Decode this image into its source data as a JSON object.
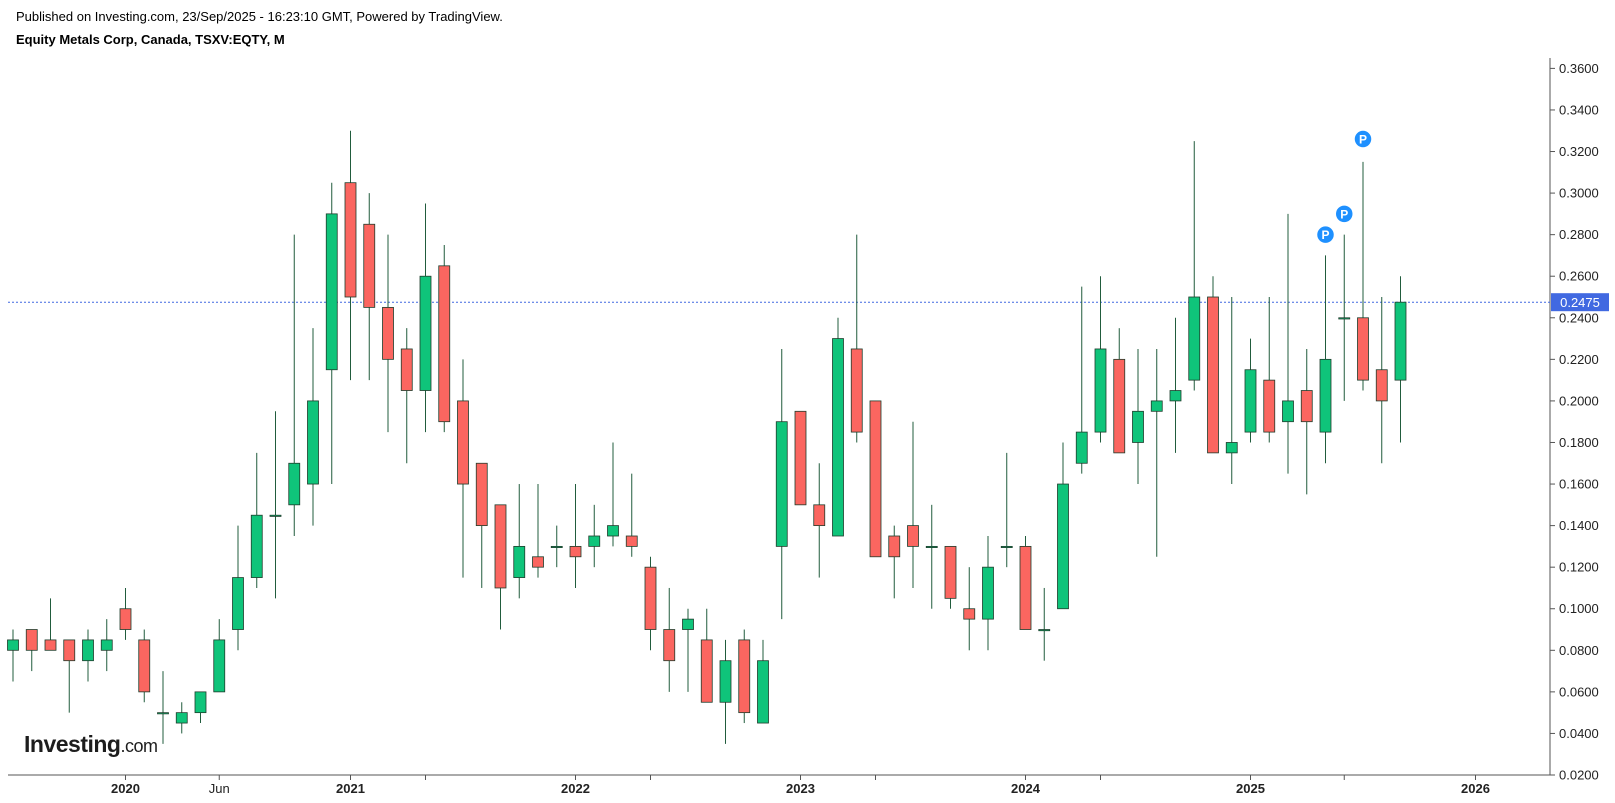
{
  "header": {
    "published": "Published on Investing.com, 23/Sep/2025 - 16:23:10 GMT, Powered by TradingView.",
    "title": "Equity Metals Corp, Canada, TSXV:EQTY, M"
  },
  "logo": {
    "brand": "Investing",
    "domain": ".com"
  },
  "colors": {
    "up": "#0fc47a",
    "down": "#fb6660",
    "wick": "#215c3d",
    "last_price": "#4169e1",
    "marker": "#1e90ff",
    "axis": "#555555"
  },
  "chart_data": {
    "type": "candlestick",
    "title": "Equity Metals Corp, Canada, TSXV:EQTY, M",
    "interval": "monthly",
    "ylim": [
      0.02,
      0.365
    ],
    "y_ticks": [
      "0.0200",
      "0.0400",
      "0.0600",
      "0.0800",
      "0.1000",
      "0.1200",
      "0.1400",
      "0.1600",
      "0.1800",
      "0.2000",
      "0.2200",
      "0.2400",
      "0.2600",
      "0.2800",
      "0.3000",
      "0.3200",
      "0.3400",
      "0.3600"
    ],
    "x_ticks": [
      {
        "label": "2020",
        "date": "2020-01",
        "bold": true
      },
      {
        "label": "Jun",
        "date": "2020-06",
        "bold": false
      },
      {
        "label": "2021",
        "date": "2021-01",
        "bold": true
      },
      {
        "label": "",
        "date": "2021-05",
        "bold": false
      },
      {
        "label": "2022",
        "date": "2022-01",
        "bold": true
      },
      {
        "label": "",
        "date": "2022-05",
        "bold": false
      },
      {
        "label": "2023",
        "date": "2023-01",
        "bold": true
      },
      {
        "label": "",
        "date": "2023-05",
        "bold": false
      },
      {
        "label": "2024",
        "date": "2024-01",
        "bold": true
      },
      {
        "label": "",
        "date": "2024-05",
        "bold": false
      },
      {
        "label": "2025",
        "date": "2025-01",
        "bold": true
      },
      {
        "label": "",
        "date": "2025-06",
        "bold": false
      },
      {
        "label": "2026",
        "date": "2026-01",
        "bold": true
      }
    ],
    "last_price": "0.2475",
    "grid": false,
    "candles": [
      {
        "date": "2019-07",
        "o": 0.08,
        "h": 0.09,
        "l": 0.065,
        "c": 0.085
      },
      {
        "date": "2019-08",
        "o": 0.09,
        "h": 0.09,
        "l": 0.07,
        "c": 0.08
      },
      {
        "date": "2019-09",
        "o": 0.085,
        "h": 0.105,
        "l": 0.08,
        "c": 0.08
      },
      {
        "date": "2019-10",
        "o": 0.085,
        "h": 0.085,
        "l": 0.05,
        "c": 0.075
      },
      {
        "date": "2019-11",
        "o": 0.075,
        "h": 0.09,
        "l": 0.065,
        "c": 0.085
      },
      {
        "date": "2019-12",
        "o": 0.08,
        "h": 0.095,
        "l": 0.07,
        "c": 0.085
      },
      {
        "date": "2020-01",
        "o": 0.1,
        "h": 0.11,
        "l": 0.085,
        "c": 0.09
      },
      {
        "date": "2020-02",
        "o": 0.085,
        "h": 0.09,
        "l": 0.055,
        "c": 0.06
      },
      {
        "date": "2020-03",
        "o": 0.05,
        "h": 0.07,
        "l": 0.035,
        "c": 0.05
      },
      {
        "date": "2020-04",
        "o": 0.045,
        "h": 0.055,
        "l": 0.04,
        "c": 0.05
      },
      {
        "date": "2020-05",
        "o": 0.05,
        "h": 0.06,
        "l": 0.045,
        "c": 0.06
      },
      {
        "date": "2020-06",
        "o": 0.06,
        "h": 0.095,
        "l": 0.06,
        "c": 0.085
      },
      {
        "date": "2020-07",
        "o": 0.09,
        "h": 0.14,
        "l": 0.08,
        "c": 0.115
      },
      {
        "date": "2020-08",
        "o": 0.115,
        "h": 0.175,
        "l": 0.11,
        "c": 0.145
      },
      {
        "date": "2020-09",
        "o": 0.145,
        "h": 0.195,
        "l": 0.105,
        "c": 0.145
      },
      {
        "date": "2020-10",
        "o": 0.15,
        "h": 0.28,
        "l": 0.135,
        "c": 0.17
      },
      {
        "date": "2020-11",
        "o": 0.16,
        "h": 0.235,
        "l": 0.14,
        "c": 0.2
      },
      {
        "date": "2020-12",
        "o": 0.215,
        "h": 0.305,
        "l": 0.16,
        "c": 0.29
      },
      {
        "date": "2021-01",
        "o": 0.305,
        "h": 0.33,
        "l": 0.21,
        "c": 0.25
      },
      {
        "date": "2021-02",
        "o": 0.285,
        "h": 0.3,
        "l": 0.21,
        "c": 0.245
      },
      {
        "date": "2021-03",
        "o": 0.245,
        "h": 0.28,
        "l": 0.185,
        "c": 0.22
      },
      {
        "date": "2021-04",
        "o": 0.225,
        "h": 0.235,
        "l": 0.17,
        "c": 0.205
      },
      {
        "date": "2021-05",
        "o": 0.205,
        "h": 0.295,
        "l": 0.185,
        "c": 0.26
      },
      {
        "date": "2021-06",
        "o": 0.265,
        "h": 0.275,
        "l": 0.185,
        "c": 0.19
      },
      {
        "date": "2021-07",
        "o": 0.2,
        "h": 0.22,
        "l": 0.115,
        "c": 0.16
      },
      {
        "date": "2021-08",
        "o": 0.17,
        "h": 0.17,
        "l": 0.11,
        "c": 0.14
      },
      {
        "date": "2021-09",
        "o": 0.15,
        "h": 0.15,
        "l": 0.09,
        "c": 0.11
      },
      {
        "date": "2021-10",
        "o": 0.115,
        "h": 0.16,
        "l": 0.105,
        "c": 0.13
      },
      {
        "date": "2021-11",
        "o": 0.125,
        "h": 0.16,
        "l": 0.115,
        "c": 0.12
      },
      {
        "date": "2021-12",
        "o": 0.13,
        "h": 0.14,
        "l": 0.12,
        "c": 0.13
      },
      {
        "date": "2022-01",
        "o": 0.13,
        "h": 0.16,
        "l": 0.11,
        "c": 0.125
      },
      {
        "date": "2022-02",
        "o": 0.13,
        "h": 0.15,
        "l": 0.12,
        "c": 0.135
      },
      {
        "date": "2022-03",
        "o": 0.135,
        "h": 0.18,
        "l": 0.13,
        "c": 0.14
      },
      {
        "date": "2022-04",
        "o": 0.135,
        "h": 0.165,
        "l": 0.125,
        "c": 0.13
      },
      {
        "date": "2022-05",
        "o": 0.12,
        "h": 0.125,
        "l": 0.08,
        "c": 0.09
      },
      {
        "date": "2022-06",
        "o": 0.09,
        "h": 0.11,
        "l": 0.06,
        "c": 0.075
      },
      {
        "date": "2022-07",
        "o": 0.09,
        "h": 0.1,
        "l": 0.06,
        "c": 0.095
      },
      {
        "date": "2022-08",
        "o": 0.085,
        "h": 0.1,
        "l": 0.055,
        "c": 0.055
      },
      {
        "date": "2022-09",
        "o": 0.055,
        "h": 0.085,
        "l": 0.035,
        "c": 0.075
      },
      {
        "date": "2022-10",
        "o": 0.085,
        "h": 0.09,
        "l": 0.045,
        "c": 0.05
      },
      {
        "date": "2022-11",
        "o": 0.045,
        "h": 0.085,
        "l": 0.045,
        "c": 0.075
      },
      {
        "date": "2022-12",
        "o": 0.13,
        "h": 0.225,
        "l": 0.095,
        "c": 0.19
      },
      {
        "date": "2023-01",
        "o": 0.195,
        "h": 0.195,
        "l": 0.15,
        "c": 0.15
      },
      {
        "date": "2023-02",
        "o": 0.15,
        "h": 0.17,
        "l": 0.115,
        "c": 0.14
      },
      {
        "date": "2023-03",
        "o": 0.135,
        "h": 0.24,
        "l": 0.135,
        "c": 0.23
      },
      {
        "date": "2023-04",
        "o": 0.225,
        "h": 0.28,
        "l": 0.18,
        "c": 0.185
      },
      {
        "date": "2023-05",
        "o": 0.2,
        "h": 0.2,
        "l": 0.125,
        "c": 0.125
      },
      {
        "date": "2023-06",
        "o": 0.135,
        "h": 0.14,
        "l": 0.105,
        "c": 0.125
      },
      {
        "date": "2023-07",
        "o": 0.14,
        "h": 0.19,
        "l": 0.11,
        "c": 0.13
      },
      {
        "date": "2023-08",
        "o": 0.13,
        "h": 0.15,
        "l": 0.1,
        "c": 0.13
      },
      {
        "date": "2023-09",
        "o": 0.13,
        "h": 0.13,
        "l": 0.1,
        "c": 0.105
      },
      {
        "date": "2023-10",
        "o": 0.1,
        "h": 0.12,
        "l": 0.08,
        "c": 0.095
      },
      {
        "date": "2023-11",
        "o": 0.095,
        "h": 0.135,
        "l": 0.08,
        "c": 0.12
      },
      {
        "date": "2023-12",
        "o": 0.13,
        "h": 0.175,
        "l": 0.12,
        "c": 0.13
      },
      {
        "date": "2024-01",
        "o": 0.13,
        "h": 0.135,
        "l": 0.09,
        "c": 0.09
      },
      {
        "date": "2024-02",
        "o": 0.09,
        "h": 0.11,
        "l": 0.075,
        "c": 0.09
      },
      {
        "date": "2024-03",
        "o": 0.1,
        "h": 0.18,
        "l": 0.1,
        "c": 0.16
      },
      {
        "date": "2024-04",
        "o": 0.17,
        "h": 0.255,
        "l": 0.165,
        "c": 0.185
      },
      {
        "date": "2024-05",
        "o": 0.185,
        "h": 0.26,
        "l": 0.18,
        "c": 0.225
      },
      {
        "date": "2024-06",
        "o": 0.22,
        "h": 0.235,
        "l": 0.175,
        "c": 0.175
      },
      {
        "date": "2024-07",
        "o": 0.18,
        "h": 0.225,
        "l": 0.16,
        "c": 0.195
      },
      {
        "date": "2024-08",
        "o": 0.195,
        "h": 0.225,
        "l": 0.125,
        "c": 0.2
      },
      {
        "date": "2024-09",
        "o": 0.2,
        "h": 0.24,
        "l": 0.175,
        "c": 0.205
      },
      {
        "date": "2024-10",
        "o": 0.21,
        "h": 0.325,
        "l": 0.205,
        "c": 0.25
      },
      {
        "date": "2024-11",
        "o": 0.25,
        "h": 0.26,
        "l": 0.175,
        "c": 0.175
      },
      {
        "date": "2024-12",
        "o": 0.175,
        "h": 0.25,
        "l": 0.16,
        "c": 0.18
      },
      {
        "date": "2025-01",
        "o": 0.185,
        "h": 0.23,
        "l": 0.18,
        "c": 0.215
      },
      {
        "date": "2025-02",
        "o": 0.21,
        "h": 0.25,
        "l": 0.18,
        "c": 0.185
      },
      {
        "date": "2025-03",
        "o": 0.19,
        "h": 0.29,
        "l": 0.165,
        "c": 0.2
      },
      {
        "date": "2025-04",
        "o": 0.205,
        "h": 0.225,
        "l": 0.155,
        "c": 0.19
      },
      {
        "date": "2025-05",
        "o": 0.185,
        "h": 0.27,
        "l": 0.17,
        "c": 0.22
      },
      {
        "date": "2025-06",
        "o": 0.24,
        "h": 0.28,
        "l": 0.2,
        "c": 0.24
      },
      {
        "date": "2025-07",
        "o": 0.24,
        "h": 0.315,
        "l": 0.205,
        "c": 0.21
      },
      {
        "date": "2025-08",
        "o": 0.215,
        "h": 0.25,
        "l": 0.17,
        "c": 0.2
      },
      {
        "date": "2025-09",
        "o": 0.21,
        "h": 0.26,
        "l": 0.18,
        "c": 0.2475
      }
    ],
    "markers": [
      {
        "label": "P",
        "date": "2025-05",
        "price": 0.28
      },
      {
        "label": "P",
        "date": "2025-06",
        "price": 0.29
      },
      {
        "label": "P",
        "date": "2025-07",
        "price": 0.326
      }
    ]
  }
}
